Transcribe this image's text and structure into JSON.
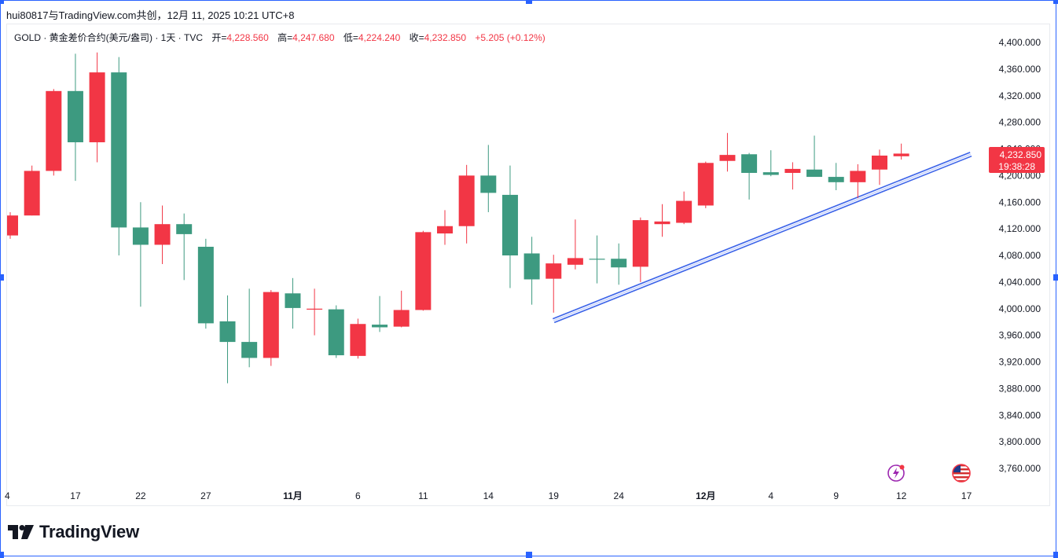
{
  "header": {
    "text": "hui80817与TradingView.com共创，12月 11, 2025 10:21 UTC+8"
  },
  "legend": {
    "symbol": "GOLD · 黄金差价合约(美元/盎司) · 1天 · TVC",
    "open_label": "开=",
    "open": "4,228.560",
    "high_label": "高=",
    "high": "4,247.680",
    "low_label": "低=",
    "low": "4,224.240",
    "close_label": "收=",
    "close": "4,232.850",
    "change": "+5.205 (+0.12%)"
  },
  "price_badge": {
    "price": "4,232.850",
    "countdown": "19:38:28",
    "color": "#f23645"
  },
  "logo": {
    "text": "TradingView"
  },
  "colors": {
    "up": "#f23645",
    "down": "#3d9a80",
    "trendline": "#3a62e8",
    "selection": "#2962ff"
  },
  "icons": [
    "lightning-icon",
    "us-flag-icon"
  ],
  "chart_data": {
    "type": "candlestick",
    "up_color": "red",
    "down_color": "green",
    "y_ticks": [
      4400,
      4360,
      4320,
      4280,
      4240,
      4200,
      4160,
      4120,
      4080,
      4040,
      4000,
      3960,
      3920,
      3880,
      3840,
      3800,
      3760
    ],
    "y_tick_labels": [
      "4,400.000",
      "4,360.000",
      "4,320.000",
      "4,280.000",
      "4,240.000",
      "4,200.000",
      "4,160.000",
      "4,120.000",
      "4,080.000",
      "4,040.000",
      "4,000.000",
      "3,960.000",
      "3,920.000",
      "3,880.000",
      "3,840.000",
      "3,800.000",
      "3,760.000"
    ],
    "ylim": [
      3730,
      4445
    ],
    "x_ticks": [
      {
        "label": "4",
        "idx": 0,
        "bold": false
      },
      {
        "label": "17",
        "idx": 3,
        "bold": false
      },
      {
        "label": "22",
        "idx": 6,
        "bold": false
      },
      {
        "label": "27",
        "idx": 9,
        "bold": false
      },
      {
        "label": "11月",
        "idx": 13,
        "bold": true
      },
      {
        "label": "6",
        "idx": 16,
        "bold": false
      },
      {
        "label": "11",
        "idx": 19,
        "bold": false
      },
      {
        "label": "14",
        "idx": 22,
        "bold": false
      },
      {
        "label": "19",
        "idx": 25,
        "bold": false
      },
      {
        "label": "24",
        "idx": 28,
        "bold": false
      },
      {
        "label": "12月",
        "idx": 32,
        "bold": true
      },
      {
        "label": "4",
        "idx": 35,
        "bold": false
      },
      {
        "label": "9",
        "idx": 38,
        "bold": false
      },
      {
        "label": "12",
        "idx": 41,
        "bold": false
      },
      {
        "label": "17",
        "idx": 44,
        "bold": false
      }
    ],
    "candles": [
      {
        "o": 4110,
        "h": 4145,
        "l": 4105,
        "c": 4140
      },
      {
        "o": 4140,
        "h": 4215,
        "l": 4140,
        "c": 4207
      },
      {
        "o": 4207,
        "h": 4330,
        "l": 4200,
        "c": 4327
      },
      {
        "o": 4327,
        "h": 4383,
        "l": 4192,
        "c": 4250
      },
      {
        "o": 4250,
        "h": 4385,
        "l": 4220,
        "c": 4355
      },
      {
        "o": 4355,
        "h": 4378,
        "l": 4080,
        "c": 4122
      },
      {
        "o": 4122,
        "h": 4160,
        "l": 4003,
        "c": 4096
      },
      {
        "o": 4096,
        "h": 4155,
        "l": 4067,
        "c": 4127
      },
      {
        "o": 4127,
        "h": 4143,
        "l": 4043,
        "c": 4112
      },
      {
        "o": 4093,
        "h": 4105,
        "l": 3970,
        "c": 3978
      },
      {
        "o": 3981,
        "h": 4020,
        "l": 3888,
        "c": 3950
      },
      {
        "o": 3950,
        "h": 4030,
        "l": 3912,
        "c": 3926
      },
      {
        "o": 3926,
        "h": 4028,
        "l": 3914,
        "c": 4025
      },
      {
        "o": 4023,
        "h": 4046,
        "l": 3970,
        "c": 4001
      },
      {
        "o": 4000,
        "h": 4030,
        "l": 3960,
        "c": 4000
      },
      {
        "o": 3999,
        "h": 4005,
        "l": 3926,
        "c": 3930
      },
      {
        "o": 3929,
        "h": 3985,
        "l": 3925,
        "c": 3977
      },
      {
        "o": 3976,
        "h": 4019,
        "l": 3965,
        "c": 3972
      },
      {
        "o": 3973,
        "h": 4027,
        "l": 3972,
        "c": 3998
      },
      {
        "o": 3998,
        "h": 4117,
        "l": 3997,
        "c": 4115
      },
      {
        "o": 4113,
        "h": 4148,
        "l": 4096,
        "c": 4124
      },
      {
        "o": 4124,
        "h": 4216,
        "l": 4098,
        "c": 4200
      },
      {
        "o": 4200,
        "h": 4246,
        "l": 4145,
        "c": 4174
      },
      {
        "o": 4171,
        "h": 4215,
        "l": 4031,
        "c": 4080
      },
      {
        "o": 4083,
        "h": 4108,
        "l": 4006,
        "c": 4044
      },
      {
        "o": 4045,
        "h": 4081,
        "l": 3994,
        "c": 4068
      },
      {
        "o": 4066,
        "h": 4134,
        "l": 4059,
        "c": 4076
      },
      {
        "o": 4075,
        "h": 4110,
        "l": 4038,
        "c": 4074
      },
      {
        "o": 4075,
        "h": 4098,
        "l": 4036,
        "c": 4062
      },
      {
        "o": 4063,
        "h": 4137,
        "l": 4040,
        "c": 4133
      },
      {
        "o": 4127,
        "h": 4157,
        "l": 4108,
        "c": 4131
      },
      {
        "o": 4129,
        "h": 4176,
        "l": 4127,
        "c": 4162
      },
      {
        "o": 4155,
        "h": 4221,
        "l": 4151,
        "c": 4219
      },
      {
        "o": 4222,
        "h": 4264,
        "l": 4206,
        "c": 4231
      },
      {
        "o": 4232,
        "h": 4234,
        "l": 4164,
        "c": 4204
      },
      {
        "o": 4205,
        "h": 4238,
        "l": 4199,
        "c": 4201
      },
      {
        "o": 4204,
        "h": 4220,
        "l": 4179,
        "c": 4210
      },
      {
        "o": 4209,
        "h": 4260,
        "l": 4202,
        "c": 4198
      },
      {
        "o": 4198,
        "h": 4219,
        "l": 4178,
        "c": 4190
      },
      {
        "o": 4190,
        "h": 4217,
        "l": 4166,
        "c": 4207
      },
      {
        "o": 4209,
        "h": 4239,
        "l": 4186,
        "c": 4230
      },
      {
        "o": 4229,
        "h": 4248,
        "l": 4224,
        "c": 4233
      }
    ],
    "trendline": {
      "start_idx": 25,
      "start_price": 3982,
      "end_idx": 44.2,
      "end_price": 4232
    }
  }
}
